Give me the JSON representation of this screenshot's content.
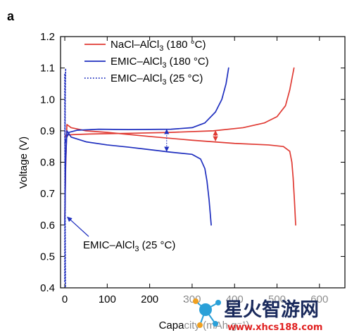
{
  "panel_letter": "a",
  "chart_data": {
    "type": "line",
    "title": "",
    "xlabel": "Capacity (mAh g⁻¹)",
    "ylabel": "Voltage (V)",
    "xlim": [
      -10,
      660
    ],
    "ylim": [
      0.4,
      1.2
    ],
    "x_ticks": [
      0,
      100,
      200,
      300,
      400,
      500,
      600
    ],
    "y_ticks": [
      0.4,
      0.5,
      0.6,
      0.7,
      0.8,
      0.9,
      1.0,
      1.1,
      1.2
    ],
    "grid": false,
    "legend_position": "top-left",
    "series": [
      {
        "name_main": "NaCl–AlCl",
        "name_sub": "3",
        "name_tail": "  (180 °C)",
        "color": "#e03a33",
        "style": "solid",
        "charge": {
          "x": [
            0,
            3,
            8,
            20,
            60,
            150,
            250,
            350,
            420,
            470,
            500,
            520,
            530,
            540
          ],
          "y": [
            0.88,
            0.885,
            0.887,
            0.888,
            0.89,
            0.892,
            0.895,
            0.9,
            0.91,
            0.925,
            0.945,
            0.98,
            1.03,
            1.1
          ]
        },
        "discharge": {
          "x": [
            0,
            2,
            5,
            15,
            50,
            100,
            200,
            300,
            400,
            480,
            515,
            530,
            535,
            538,
            541,
            544
          ],
          "y": [
            0.62,
            0.78,
            0.92,
            0.91,
            0.9,
            0.895,
            0.882,
            0.87,
            0.86,
            0.855,
            0.85,
            0.835,
            0.8,
            0.75,
            0.68,
            0.6
          ]
        }
      },
      {
        "name_main": "EMIC–AlCl",
        "name_sub": "3",
        "name_tail": " (180 °C)",
        "color": "#1f2fbf",
        "style": "solid",
        "charge": {
          "x": [
            0,
            5,
            10,
            30,
            80,
            150,
            250,
            300,
            330,
            355,
            370,
            380,
            386
          ],
          "y": [
            0.86,
            0.88,
            0.895,
            0.902,
            0.905,
            0.904,
            0.905,
            0.91,
            0.925,
            0.96,
            1.0,
            1.05,
            1.1
          ]
        },
        "discharge": {
          "x": [
            0,
            2,
            5,
            15,
            50,
            100,
            150,
            200,
            250,
            300,
            320,
            330,
            335,
            340,
            345
          ],
          "y": [
            0.6,
            0.8,
            0.9,
            0.88,
            0.865,
            0.855,
            0.848,
            0.84,
            0.832,
            0.825,
            0.81,
            0.78,
            0.74,
            0.68,
            0.6
          ]
        }
      },
      {
        "name_main": "EMIC–AlCl",
        "name_sub": "3",
        "name_tail": " (25 °C)",
        "color": "#1f2fbf",
        "style": "dotted",
        "charge": {
          "x": [
            0,
            0.3,
            0.6,
            1.0,
            1.4,
            1.8,
            2.0
          ],
          "y": [
            0.42,
            0.7,
            0.9,
            1.0,
            1.05,
            1.08,
            1.1
          ]
        },
        "discharge": {
          "x": [
            0,
            0.3,
            0.6,
            0.9,
            1.2,
            1.5
          ],
          "y": [
            1.08,
            0.9,
            0.7,
            0.6,
            0.5,
            0.4
          ]
        }
      }
    ],
    "annotations": [
      {
        "kind": "double-arrow",
        "color": "#1f2fbf",
        "x": 240,
        "y1": 0.835,
        "y2": 0.904
      },
      {
        "kind": "double-arrow",
        "color": "#e03a33",
        "x": 355,
        "y1": 0.868,
        "y2": 0.9
      },
      {
        "kind": "callout",
        "text_main": "EMIC–AlCl",
        "text_sub": "3",
        "text_tail": " (25 °C)",
        "target_x": 1,
        "target_y": 0.63
      }
    ]
  },
  "watermark": {
    "brand": "星火智游网",
    "url": "www.xhcs188.com",
    "colors": {
      "brand_dark": "#1a2a5c",
      "accent_red": "#e02020",
      "accent_blue": "#2aa0d8"
    }
  }
}
